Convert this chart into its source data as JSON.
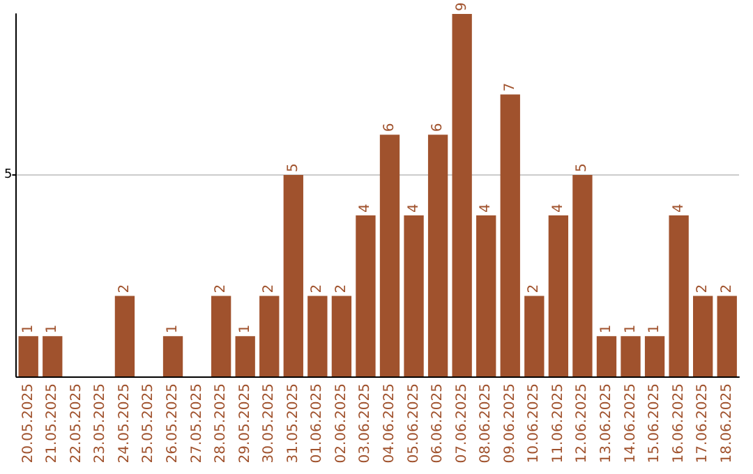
{
  "chart_data": {
    "type": "bar",
    "categories": [
      "20.05.2025",
      "21.05.2025",
      "22.05.2025",
      "23.05.2025",
      "24.05.2025",
      "25.05.2025",
      "26.05.2025",
      "27.05.2025",
      "28.05.2025",
      "29.05.2025",
      "30.05.2025",
      "31.05.2025",
      "01.06.2025",
      "02.06.2025",
      "03.06.2025",
      "04.06.2025",
      "05.06.2025",
      "06.06.2025",
      "07.06.2025",
      "08.06.2025",
      "09.06.2025",
      "10.06.2025",
      "11.06.2025",
      "12.06.2025",
      "13.06.2025",
      "14.06.2025",
      "15.06.2025",
      "16.06.2025",
      "17.06.2025",
      "18.06.2025"
    ],
    "values": [
      1,
      1,
      null,
      null,
      2,
      null,
      1,
      null,
      2,
      1,
      2,
      5,
      2,
      2,
      4,
      6,
      4,
      6,
      9,
      4,
      7,
      2,
      4,
      5,
      1,
      1,
      1,
      4,
      2,
      2
    ],
    "color": "#a0522d",
    "ylim": [
      0,
      9
    ],
    "yticks": [
      5
    ],
    "grid": "y",
    "data_labels": true
  }
}
